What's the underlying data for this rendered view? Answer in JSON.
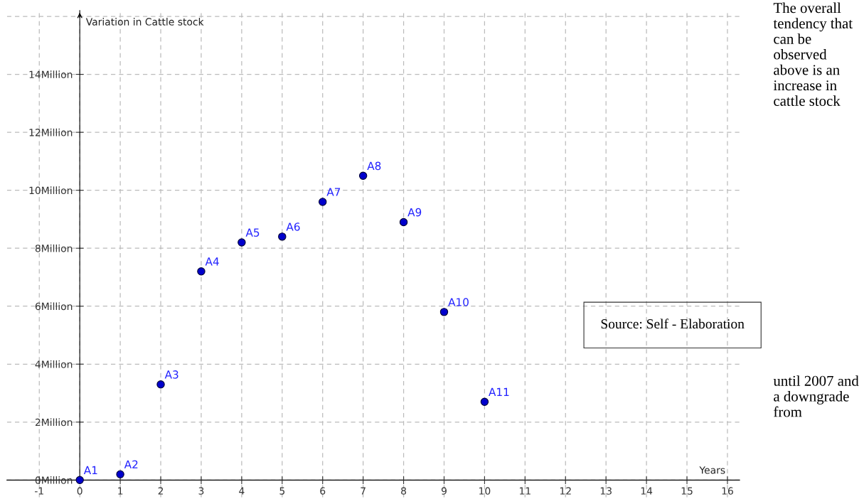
{
  "chart_data": {
    "type": "scatter",
    "xlabel": "Years",
    "ylabel": "Variation in Cattle stock",
    "x": [
      0,
      1,
      2,
      3,
      4,
      5,
      6,
      7,
      8,
      9,
      10
    ],
    "series": [
      {
        "color": "#0000cc",
        "values": [
          0,
          0.2,
          3.3,
          7.2,
          8.2,
          8.4,
          9.6,
          10.5,
          8.9,
          5.8,
          2.7
        ]
      }
    ],
    "xlim": [
      -1.8,
      16.3
    ],
    "ylim": [
      -0.6,
      16.2
    ],
    "xticks": [
      -1,
      0,
      1,
      2,
      3,
      4,
      5,
      6,
      7,
      8,
      9,
      10,
      11,
      12,
      13,
      14,
      15,
      16
    ],
    "yticks": [
      {
        "value": 0,
        "label": "0Million"
      },
      {
        "value": 2,
        "label": "2Million"
      },
      {
        "value": 4,
        "label": "4Million"
      },
      {
        "value": 6,
        "label": "6Million"
      },
      {
        "value": 8,
        "label": "8Million"
      },
      {
        "value": 10,
        "label": "10Million"
      },
      {
        "value": 12,
        "label": "12Million"
      },
      {
        "value": 14,
        "label": "14Million"
      }
    ],
    "grid": true,
    "marker": "circle",
    "annotations": [
      {
        "text": "A1",
        "x": 0,
        "y": 0
      },
      {
        "text": "A2",
        "x": 1,
        "y": 0.2
      },
      {
        "text": "A3",
        "x": 2,
        "y": 3.3
      },
      {
        "text": "A4",
        "x": 3,
        "y": 7.2
      },
      {
        "text": "A5",
        "x": 4,
        "y": 8.2
      },
      {
        "text": "A6",
        "x": 5,
        "y": 8.4
      },
      {
        "text": "A7",
        "x": 6,
        "y": 9.6
      },
      {
        "text": "A8",
        "x": 7,
        "y": 10.5
      },
      {
        "text": "A9",
        "x": 8,
        "y": 8.9
      },
      {
        "text": "A10",
        "x": 9,
        "y": 5.8
      },
      {
        "text": "A11",
        "x": 10,
        "y": 2.7
      },
      "The overall tendency that can be observed above is an increase in cattle stock",
      "Source: Self - Elaboration",
      "until 2007 and a downgrade from"
    ]
  }
}
